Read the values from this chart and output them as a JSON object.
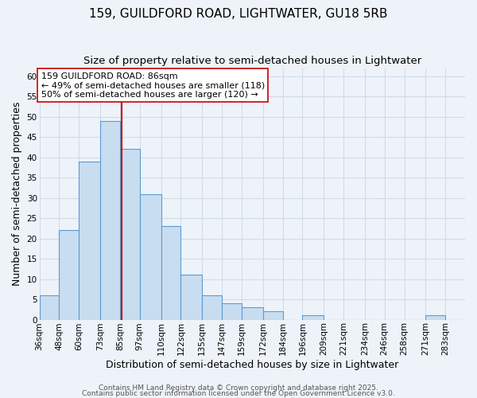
{
  "title": "159, GUILDFORD ROAD, LIGHTWATER, GU18 5RB",
  "subtitle": "Size of property relative to semi-detached houses in Lightwater",
  "xlabel": "Distribution of semi-detached houses by size in Lightwater",
  "ylabel": "Number of semi-detached properties",
  "bin_labels": [
    "36sqm",
    "48sqm",
    "60sqm",
    "73sqm",
    "85sqm",
    "97sqm",
    "110sqm",
    "122sqm",
    "135sqm",
    "147sqm",
    "159sqm",
    "172sqm",
    "184sqm",
    "196sqm",
    "209sqm",
    "221sqm",
    "234sqm",
    "246sqm",
    "258sqm",
    "271sqm",
    "283sqm"
  ],
  "bin_edges": [
    36,
    48,
    60,
    73,
    85,
    97,
    110,
    122,
    135,
    147,
    159,
    172,
    184,
    196,
    209,
    221,
    234,
    246,
    258,
    271,
    283,
    295
  ],
  "counts": [
    6,
    22,
    39,
    49,
    42,
    31,
    23,
    11,
    6,
    4,
    3,
    2,
    0,
    1,
    0,
    0,
    0,
    0,
    0,
    1,
    0
  ],
  "bar_color": "#c9ddf0",
  "bar_edge_color": "#5b9bd5",
  "property_value": 86,
  "vline_color": "#cc0000",
  "annotation_text": "159 GUILDFORD ROAD: 86sqm\n← 49% of semi-detached houses are smaller (118)\n50% of semi-detached houses are larger (120) →",
  "annotation_box_color": "white",
  "annotation_box_edge_color": "#cc0000",
  "ylim": [
    0,
    62
  ],
  "footer1": "Contains HM Land Registry data © Crown copyright and database right 2025.",
  "footer2": "Contains public sector information licensed under the Open Government Licence v3.0.",
  "background_color": "#eef3fa",
  "grid_color": "#d0dcea",
  "title_fontsize": 11,
  "subtitle_fontsize": 9.5,
  "axis_label_fontsize": 9,
  "tick_fontsize": 7.5,
  "footer_fontsize": 6.5,
  "annotation_fontsize": 8
}
